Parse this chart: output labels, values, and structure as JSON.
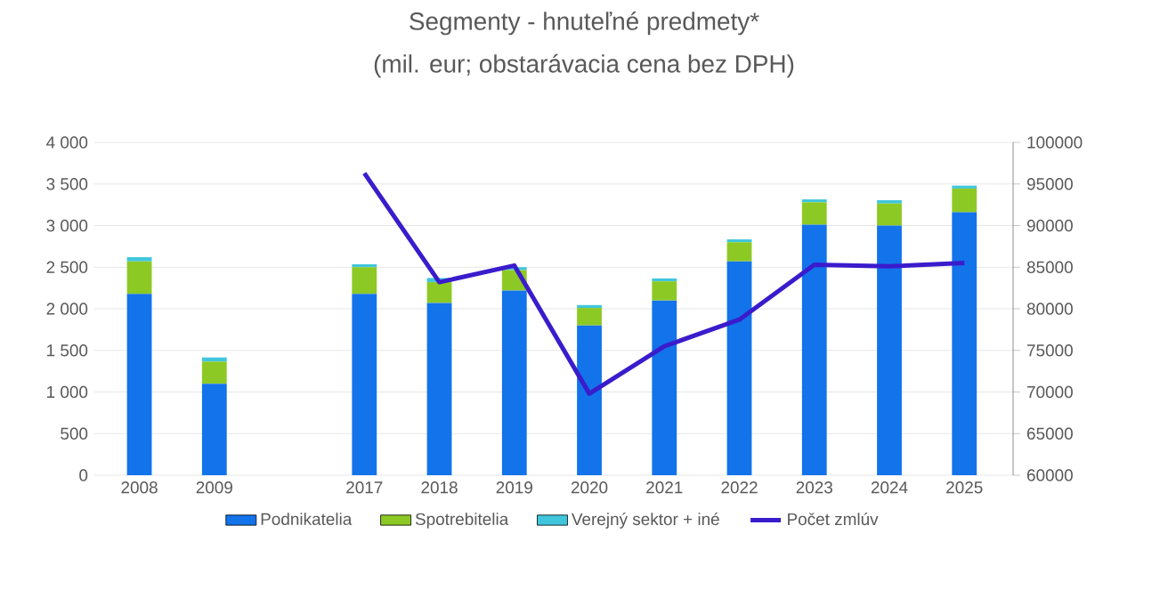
{
  "chart_data": {
    "type": "bar",
    "stacked": true,
    "title": "Segmenty - hnuteľné predmety*",
    "subtitle": "(mil. eur; obstarávacia cena bez DPH)",
    "categories": [
      "2008",
      "2009",
      null,
      "2017",
      "2018",
      "2019",
      "2020",
      "2021",
      "2022",
      "2023",
      "2024",
      "2025"
    ],
    "series": [
      {
        "name": "Podnikatelia",
        "color": "#1273eb",
        "values": [
          2180,
          1100,
          null,
          2180,
          2070,
          2220,
          1800,
          2100,
          2570,
          3010,
          3000,
          3160
        ]
      },
      {
        "name": "Spotrebitelia",
        "color": "#8dc924",
        "values": [
          390,
          265,
          null,
          320,
          250,
          245,
          210,
          230,
          230,
          270,
          265,
          285
        ]
      },
      {
        "name": "Verejný sektor + iné",
        "color": "#3fc6dc",
        "values": [
          50,
          50,
          null,
          35,
          50,
          35,
          35,
          35,
          35,
          35,
          40,
          35
        ]
      },
      {
        "name": "Počet zmlúv",
        "type": "line",
        "axis": "y2",
        "color": "#3a1ccc",
        "values": [
          null,
          null,
          null,
          96300,
          83200,
          85200,
          69800,
          75500,
          78700,
          85300,
          85100,
          85500
        ]
      }
    ],
    "ylim": [
      0,
      4000
    ],
    "yticks": [
      {
        "value": 0,
        "label": "0"
      },
      {
        "value": 500,
        "label": "500"
      },
      {
        "value": 1000,
        "label": "1 000"
      },
      {
        "value": 1500,
        "label": "1 500"
      },
      {
        "value": 2000,
        "label": "2 000"
      },
      {
        "value": 2500,
        "label": "2 500"
      },
      {
        "value": 3000,
        "label": "3 000"
      },
      {
        "value": 3500,
        "label": "3 500"
      },
      {
        "value": 4000,
        "label": "4 000"
      }
    ],
    "y2lim": [
      60000,
      100000
    ],
    "y2ticks": [
      60000,
      65000,
      70000,
      75000,
      80000,
      85000,
      90000,
      95000,
      100000
    ],
    "grid": "y",
    "legend": "bottom"
  }
}
